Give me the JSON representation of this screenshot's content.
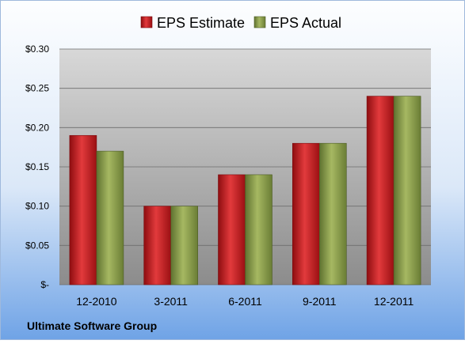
{
  "colors": {
    "estimate": "#c8191c",
    "actual": "#8ea04a",
    "frame_top": "#fdfeff",
    "frame_bottom": "#6fa3e6",
    "plot_top": "#d8d8d8",
    "plot_bottom": "#8c8c8c"
  },
  "chart_data": {
    "type": "bar",
    "title": "",
    "xlabel": "",
    "ylabel": "",
    "categories": [
      "12-2010",
      "3-2011",
      "6-2011",
      "9-2011",
      "12-2011"
    ],
    "series": [
      {
        "name": "EPS Estimate",
        "values": [
          0.19,
          0.1,
          0.14,
          0.18,
          0.24
        ]
      },
      {
        "name": "EPS Actual",
        "values": [
          0.17,
          0.1,
          0.14,
          0.18,
          0.24
        ]
      }
    ],
    "ylim": [
      0,
      0.3
    ],
    "yticks": [
      0,
      0.05,
      0.1,
      0.15,
      0.2,
      0.25,
      0.3
    ],
    "ytick_labels": [
      "$-",
      "$0.05",
      "$0.10",
      "$0.15",
      "$0.20",
      "$0.25",
      "$0.30"
    ],
    "grid": true,
    "legend_position": "top",
    "footer": "Ultimate Software Group"
  }
}
